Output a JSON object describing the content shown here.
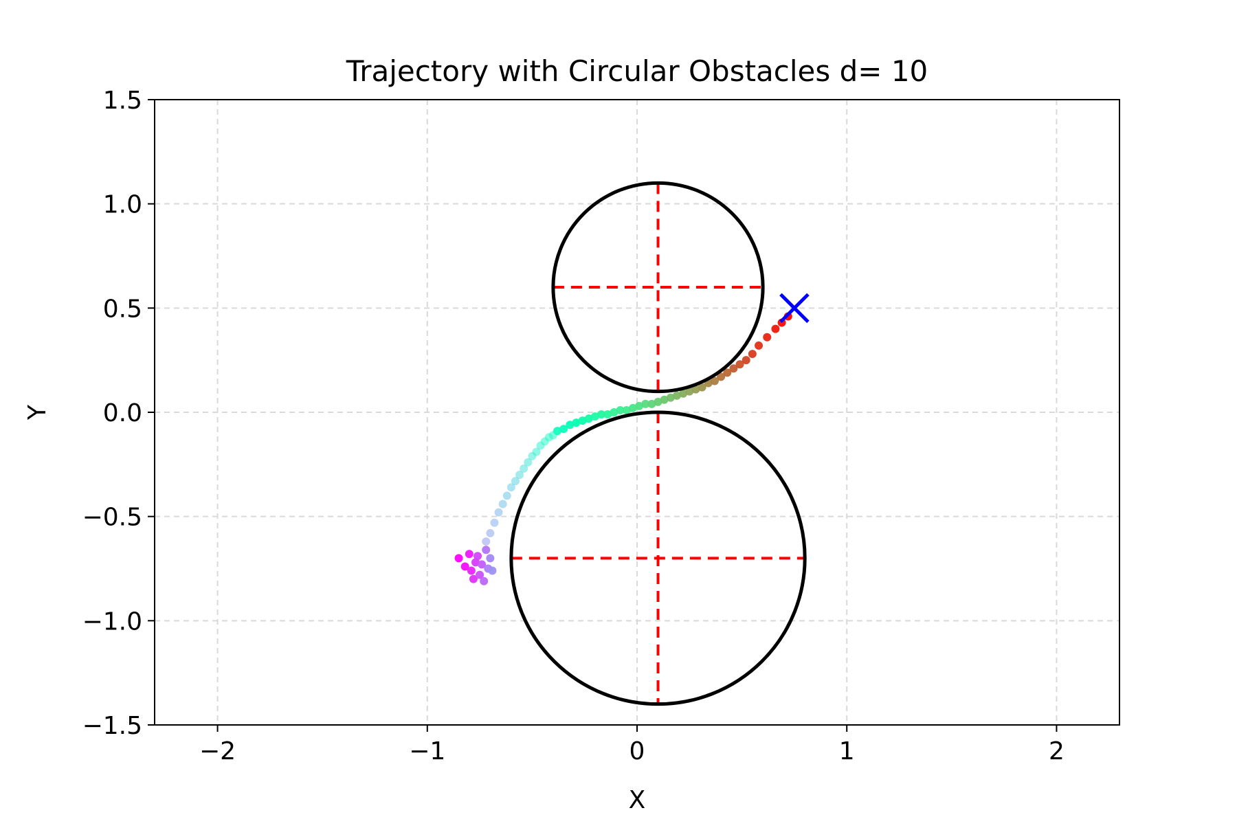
{
  "chart_data": {
    "type": "scatter",
    "title": "Trajectory with Circular Obstacles d= 10",
    "xlabel": "X",
    "ylabel": "Y",
    "xlim": [
      -2.3,
      2.3
    ],
    "ylim": [
      -1.5,
      1.5
    ],
    "xticks": [
      -2,
      -1,
      0,
      1,
      2
    ],
    "xtick_labels": [
      "−2",
      "−1",
      "0",
      "1",
      "2"
    ],
    "yticks": [
      -1.5,
      -1.0,
      -0.5,
      0.0,
      0.5,
      1.0,
      1.5
    ],
    "ytick_labels": [
      "−1.5",
      "−1.0",
      "−0.5",
      "0.0",
      "0.5",
      "1.0",
      "1.5"
    ],
    "grid": true,
    "obstacles": [
      {
        "center": [
          0.1,
          0.6
        ],
        "radius": 0.5
      },
      {
        "center": [
          0.1,
          -0.7
        ],
        "radius": 0.7
      }
    ],
    "obstacle_color": "#000000",
    "crosshair_color": "#ff0000",
    "target": {
      "x": 0.75,
      "y": 0.5,
      "marker": "x",
      "color": "#0000ff"
    },
    "trajectory_colormap": "rainbow",
    "trajectory": [
      [
        -0.85,
        -0.7
      ],
      [
        -0.82,
        -0.74
      ],
      [
        -0.8,
        -0.68
      ],
      [
        -0.79,
        -0.76
      ],
      [
        -0.78,
        -0.8
      ],
      [
        -0.77,
        -0.72
      ],
      [
        -0.76,
        -0.69
      ],
      [
        -0.75,
        -0.78
      ],
      [
        -0.74,
        -0.73
      ],
      [
        -0.73,
        -0.81
      ],
      [
        -0.72,
        -0.66
      ],
      [
        -0.71,
        -0.75
      ],
      [
        -0.7,
        -0.7
      ],
      [
        -0.69,
        -0.76
      ],
      [
        -0.72,
        -0.62
      ],
      [
        -0.7,
        -0.58
      ],
      [
        -0.68,
        -0.53
      ],
      [
        -0.66,
        -0.48
      ],
      [
        -0.64,
        -0.44
      ],
      [
        -0.62,
        -0.4
      ],
      [
        -0.6,
        -0.36
      ],
      [
        -0.58,
        -0.33
      ],
      [
        -0.56,
        -0.3
      ],
      [
        -0.54,
        -0.27
      ],
      [
        -0.52,
        -0.24
      ],
      [
        -0.5,
        -0.21
      ],
      [
        -0.48,
        -0.19
      ],
      [
        -0.46,
        -0.16
      ],
      [
        -0.44,
        -0.14
      ],
      [
        -0.42,
        -0.12
      ],
      [
        -0.4,
        -0.11
      ],
      [
        -0.38,
        -0.09
      ],
      [
        -0.35,
        -0.08
      ],
      [
        -0.32,
        -0.06
      ],
      [
        -0.29,
        -0.05
      ],
      [
        -0.26,
        -0.04
      ],
      [
        -0.23,
        -0.03
      ],
      [
        -0.2,
        -0.02
      ],
      [
        -0.17,
        -0.01
      ],
      [
        -0.14,
        -0.01
      ],
      [
        -0.11,
        0.0
      ],
      [
        -0.08,
        0.01
      ],
      [
        -0.05,
        0.01
      ],
      [
        -0.02,
        0.02
      ],
      [
        0.01,
        0.03
      ],
      [
        0.04,
        0.04
      ],
      [
        0.07,
        0.04
      ],
      [
        0.1,
        0.05
      ],
      [
        0.13,
        0.06
      ],
      [
        0.16,
        0.07
      ],
      [
        0.19,
        0.08
      ],
      [
        0.22,
        0.09
      ],
      [
        0.25,
        0.1
      ],
      [
        0.28,
        0.11
      ],
      [
        0.31,
        0.12
      ],
      [
        0.34,
        0.14
      ],
      [
        0.37,
        0.15
      ],
      [
        0.4,
        0.17
      ],
      [
        0.43,
        0.19
      ],
      [
        0.46,
        0.21
      ],
      [
        0.49,
        0.23
      ],
      [
        0.52,
        0.25
      ],
      [
        0.55,
        0.28
      ],
      [
        0.58,
        0.32
      ],
      [
        0.62,
        0.36
      ],
      [
        0.66,
        0.4
      ],
      [
        0.69,
        0.43
      ],
      [
        0.72,
        0.46
      ]
    ]
  }
}
